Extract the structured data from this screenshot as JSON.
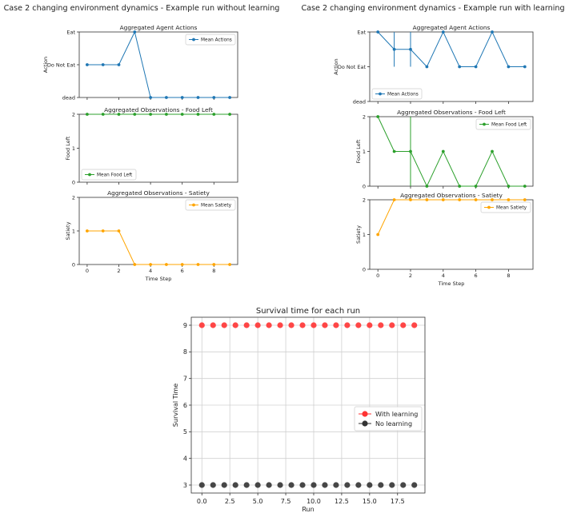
{
  "figures": {
    "left_title": "Case 2 changing environment dynamics - Example run without learning",
    "right_title": "Case 2 changing environment dynamics - Example run with learning"
  },
  "chart_data": [
    {
      "id": "left-actions",
      "type": "line",
      "title": "Aggregated Agent Actions",
      "ylabel": "Action",
      "xlabel": "",
      "x": [
        0,
        1,
        2,
        3,
        4,
        5,
        6,
        7,
        8,
        9
      ],
      "y_categories": [
        "dead",
        "Do Not Eat",
        "Eat"
      ],
      "ylim": [
        0,
        2
      ],
      "xlim": [
        -0.5,
        9.5
      ],
      "yticks": [
        0,
        1,
        2
      ],
      "xticks": [
        0,
        2,
        4,
        6,
        8
      ],
      "show_x_ticklabels": false,
      "legend": "top-right",
      "series": [
        {
          "name": "Mean Actions",
          "color": "#1f77b4",
          "values": [
            1,
            1,
            1,
            2,
            0,
            0,
            0,
            0,
            0,
            0
          ]
        }
      ],
      "errorbars": []
    },
    {
      "id": "left-food",
      "type": "line",
      "title": "Aggregated Observations - Food Left",
      "ylabel": "Food Left",
      "xlabel": "",
      "x": [
        0,
        1,
        2,
        3,
        4,
        5,
        6,
        7,
        8,
        9
      ],
      "ylim": [
        0,
        2
      ],
      "xlim": [
        -0.5,
        9.5
      ],
      "yticks": [
        0,
        1,
        2
      ],
      "xticks": [
        0,
        2,
        4,
        6,
        8
      ],
      "show_x_ticklabels": false,
      "legend": "bottom-left",
      "series": [
        {
          "name": "Mean Food Left",
          "color": "#2ca02c",
          "values": [
            2,
            2,
            2,
            2,
            2,
            2,
            2,
            2,
            2,
            2
          ]
        }
      ],
      "errorbars": []
    },
    {
      "id": "left-satiety",
      "type": "line",
      "title": "Aggregated Observations - Satiety",
      "ylabel": "Satiety",
      "xlabel": "Time Step",
      "x": [
        0,
        1,
        2,
        3,
        4,
        5,
        6,
        7,
        8,
        9
      ],
      "ylim": [
        0,
        2
      ],
      "xlim": [
        -0.5,
        9.5
      ],
      "yticks": [
        0,
        1,
        2
      ],
      "xticks": [
        0,
        2,
        4,
        6,
        8
      ],
      "show_x_ticklabels": true,
      "legend": "top-right",
      "series": [
        {
          "name": "Mean Satiety",
          "color": "#ffa500",
          "values": [
            1,
            1,
            1,
            0,
            0,
            0,
            0,
            0,
            0,
            0
          ]
        }
      ],
      "errorbars": []
    },
    {
      "id": "right-actions",
      "type": "line",
      "title": "Aggregated Agent Actions",
      "ylabel": "Action",
      "xlabel": "",
      "x": [
        0,
        1,
        2,
        3,
        4,
        5,
        6,
        7,
        8,
        9
      ],
      "y_categories": [
        "dead",
        "Do Not Eat",
        "Eat"
      ],
      "ylim": [
        0,
        2
      ],
      "xlim": [
        -0.5,
        9.5
      ],
      "yticks": [
        0,
        1,
        2
      ],
      "xticks": [
        0,
        2,
        4,
        6,
        8
      ],
      "show_x_ticklabels": false,
      "legend": "bottom-left",
      "series": [
        {
          "name": "Mean Actions",
          "color": "#1f77b4",
          "values": [
            2,
            1.5,
            1.5,
            1,
            2,
            1,
            1,
            2,
            1,
            1
          ]
        }
      ],
      "errorbars": [
        {
          "x": 1,
          "low": 1,
          "high": 2
        },
        {
          "x": 2,
          "low": 1,
          "high": 2
        }
      ]
    },
    {
      "id": "right-food",
      "type": "line",
      "title": "Aggregated Observations - Food Left",
      "ylabel": "Food Left",
      "xlabel": "",
      "x": [
        0,
        1,
        2,
        3,
        4,
        5,
        6,
        7,
        8,
        9
      ],
      "ylim": [
        0,
        2
      ],
      "xlim": [
        -0.5,
        9.5
      ],
      "yticks": [
        0,
        1,
        2
      ],
      "xticks": [
        0,
        2,
        4,
        6,
        8
      ],
      "show_x_ticklabels": false,
      "legend": "top-right",
      "series": [
        {
          "name": "Mean Food Left",
          "color": "#2ca02c",
          "values": [
            2,
            1,
            1,
            0,
            1,
            0,
            0,
            1,
            0,
            0
          ]
        }
      ],
      "errorbars": [
        {
          "x": 2,
          "low": 0,
          "high": 2
        }
      ]
    },
    {
      "id": "right-satiety",
      "type": "line",
      "title": "Aggregated Observations - Satiety",
      "ylabel": "Satiety",
      "xlabel": "Time Step",
      "x": [
        0,
        1,
        2,
        3,
        4,
        5,
        6,
        7,
        8,
        9
      ],
      "ylim": [
        0,
        2
      ],
      "xlim": [
        -0.5,
        9.5
      ],
      "yticks": [
        0,
        1,
        2
      ],
      "xticks": [
        0,
        2,
        4,
        6,
        8
      ],
      "show_x_ticklabels": true,
      "legend": "top-right",
      "series": [
        {
          "name": "Mean Satiety",
          "color": "#ffa500",
          "values": [
            1,
            2,
            2,
            2,
            2,
            2,
            2,
            2,
            2,
            2
          ]
        }
      ],
      "errorbars": []
    },
    {
      "id": "survival",
      "type": "scatter",
      "title": "Survival time for each run",
      "xlabel": "Run",
      "ylabel": "Survival Time",
      "x": [
        0,
        1,
        2,
        3,
        4,
        5,
        6,
        7,
        8,
        9,
        10,
        11,
        12,
        13,
        14,
        15,
        16,
        17,
        18,
        19
      ],
      "xlim": [
        -0.95,
        19.95
      ],
      "ylim": [
        2.7,
        9.3
      ],
      "xticks": [
        0.0,
        2.5,
        5.0,
        7.5,
        10.0,
        12.5,
        15.0,
        17.5
      ],
      "yticks": [
        3,
        4,
        5,
        6,
        7,
        8,
        9
      ],
      "grid": true,
      "legend": "center-right",
      "series": [
        {
          "name": "With learning",
          "color": "#ff3333",
          "values": [
            9,
            9,
            9,
            9,
            9,
            9,
            9,
            9,
            9,
            9,
            9,
            9,
            9,
            9,
            9,
            9,
            9,
            9,
            9,
            9
          ]
        },
        {
          "name": "No learning",
          "color": "#333333",
          "values": [
            3,
            3,
            3,
            3,
            3,
            3,
            3,
            3,
            3,
            3,
            3,
            3,
            3,
            3,
            3,
            3,
            3,
            3,
            3,
            3
          ]
        }
      ]
    }
  ]
}
